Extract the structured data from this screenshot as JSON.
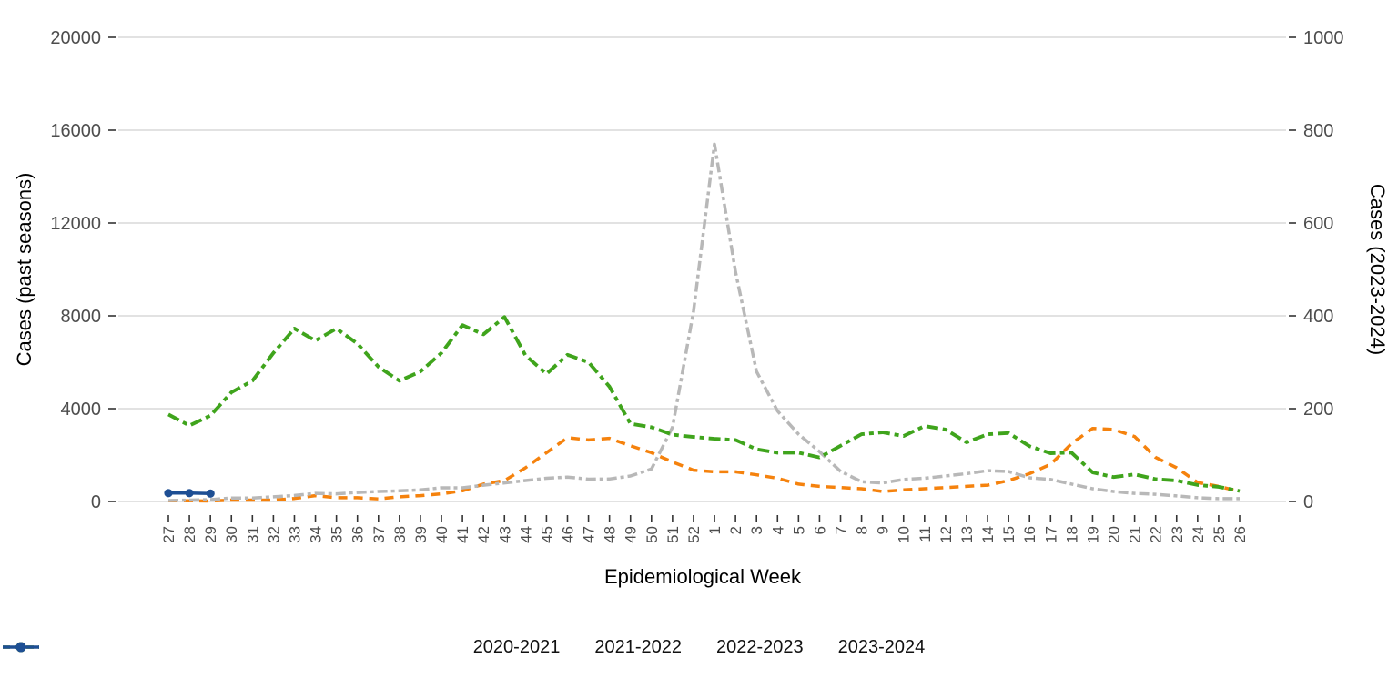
{
  "chart_data": {
    "type": "line",
    "x_label": "Epidemiological Week",
    "x_categories": [
      "27",
      "28",
      "29",
      "30",
      "31",
      "32",
      "33",
      "34",
      "35",
      "36",
      "37",
      "38",
      "39",
      "40",
      "41",
      "42",
      "43",
      "44",
      "45",
      "46",
      "47",
      "48",
      "49",
      "50",
      "51",
      "52",
      "1",
      "2",
      "3",
      "4",
      "5",
      "6",
      "7",
      "8",
      "9",
      "10",
      "11",
      "12",
      "13",
      "14",
      "15",
      "16",
      "17",
      "18",
      "19",
      "20",
      "21",
      "22",
      "23",
      "24",
      "25",
      "26"
    ],
    "left_axis": {
      "title": "Cases (past seasons)",
      "range": [
        0,
        20000
      ],
      "ticks": [
        0,
        4000,
        8000,
        12000,
        16000,
        20000
      ]
    },
    "right_axis": {
      "title": "Cases (2023-2024)",
      "range": [
        0,
        1000
      ],
      "ticks": [
        0,
        200,
        400,
        600,
        800,
        1000
      ]
    },
    "grid": true,
    "legend_position": "bottom",
    "colors": {
      "gridline": "#d9d9d9",
      "tick": "#333333",
      "tick_text": "#4d4d4d"
    },
    "series": [
      {
        "name": "2020-2021",
        "color": "#F5820D",
        "style": "dashed",
        "axis": "left",
        "marker": false,
        "values": [
          30,
          30,
          20,
          60,
          60,
          60,
          130,
          250,
          160,
          160,
          110,
          200,
          250,
          330,
          460,
          750,
          900,
          1450,
          2100,
          2750,
          2650,
          2720,
          2400,
          2100,
          1700,
          1350,
          1280,
          1280,
          1150,
          1000,
          750,
          650,
          600,
          550,
          430,
          500,
          550,
          600,
          650,
          700,
          900,
          1200,
          1600,
          2500,
          3150,
          3100,
          2800,
          1900,
          1450,
          820,
          650,
          430
        ]
      },
      {
        "name": "2021-2022",
        "color": "#B8B8B8",
        "style": "twodash",
        "axis": "left",
        "marker": false,
        "values": [
          40,
          60,
          80,
          150,
          150,
          200,
          260,
          350,
          330,
          390,
          430,
          460,
          500,
          590,
          590,
          700,
          800,
          900,
          1000,
          1050,
          960,
          970,
          1100,
          1400,
          3200,
          8200,
          15400,
          9900,
          5600,
          3900,
          2900,
          2150,
          1300,
          850,
          800,
          950,
          1000,
          1100,
          1200,
          1330,
          1290,
          1020,
          950,
          750,
          550,
          430,
          350,
          310,
          240,
          160,
          120,
          120
        ]
      },
      {
        "name": "2022-2023",
        "color": "#3FA41C",
        "style": "longdashdot",
        "axis": "left",
        "marker": false,
        "values": [
          3750,
          3270,
          3700,
          4700,
          5200,
          6400,
          7450,
          6930,
          7450,
          6800,
          5800,
          5200,
          5600,
          6400,
          7600,
          7200,
          7950,
          6300,
          5500,
          6320,
          6000,
          4950,
          3350,
          3200,
          2880,
          2780,
          2700,
          2650,
          2250,
          2100,
          2100,
          1900,
          2400,
          2900,
          2980,
          2820,
          3250,
          3100,
          2550,
          2900,
          2950,
          2380,
          2080,
          2100,
          1250,
          1050,
          1170,
          960,
          900,
          710,
          630,
          450
        ]
      },
      {
        "name": "2023-2024",
        "color": "#1E4F94",
        "style": "solid",
        "axis": "right",
        "marker": true,
        "values": [
          18,
          18,
          17,
          null,
          null,
          null,
          null,
          null,
          null,
          null,
          null,
          null,
          null,
          null,
          null,
          null,
          null,
          null,
          null,
          null,
          null,
          null,
          null,
          null,
          null,
          null,
          null,
          null,
          null,
          null,
          null,
          null,
          null,
          null,
          null,
          null,
          null,
          null,
          null,
          null,
          null,
          null,
          null,
          null,
          null,
          null,
          null,
          null,
          null,
          null,
          null,
          null
        ]
      }
    ]
  }
}
